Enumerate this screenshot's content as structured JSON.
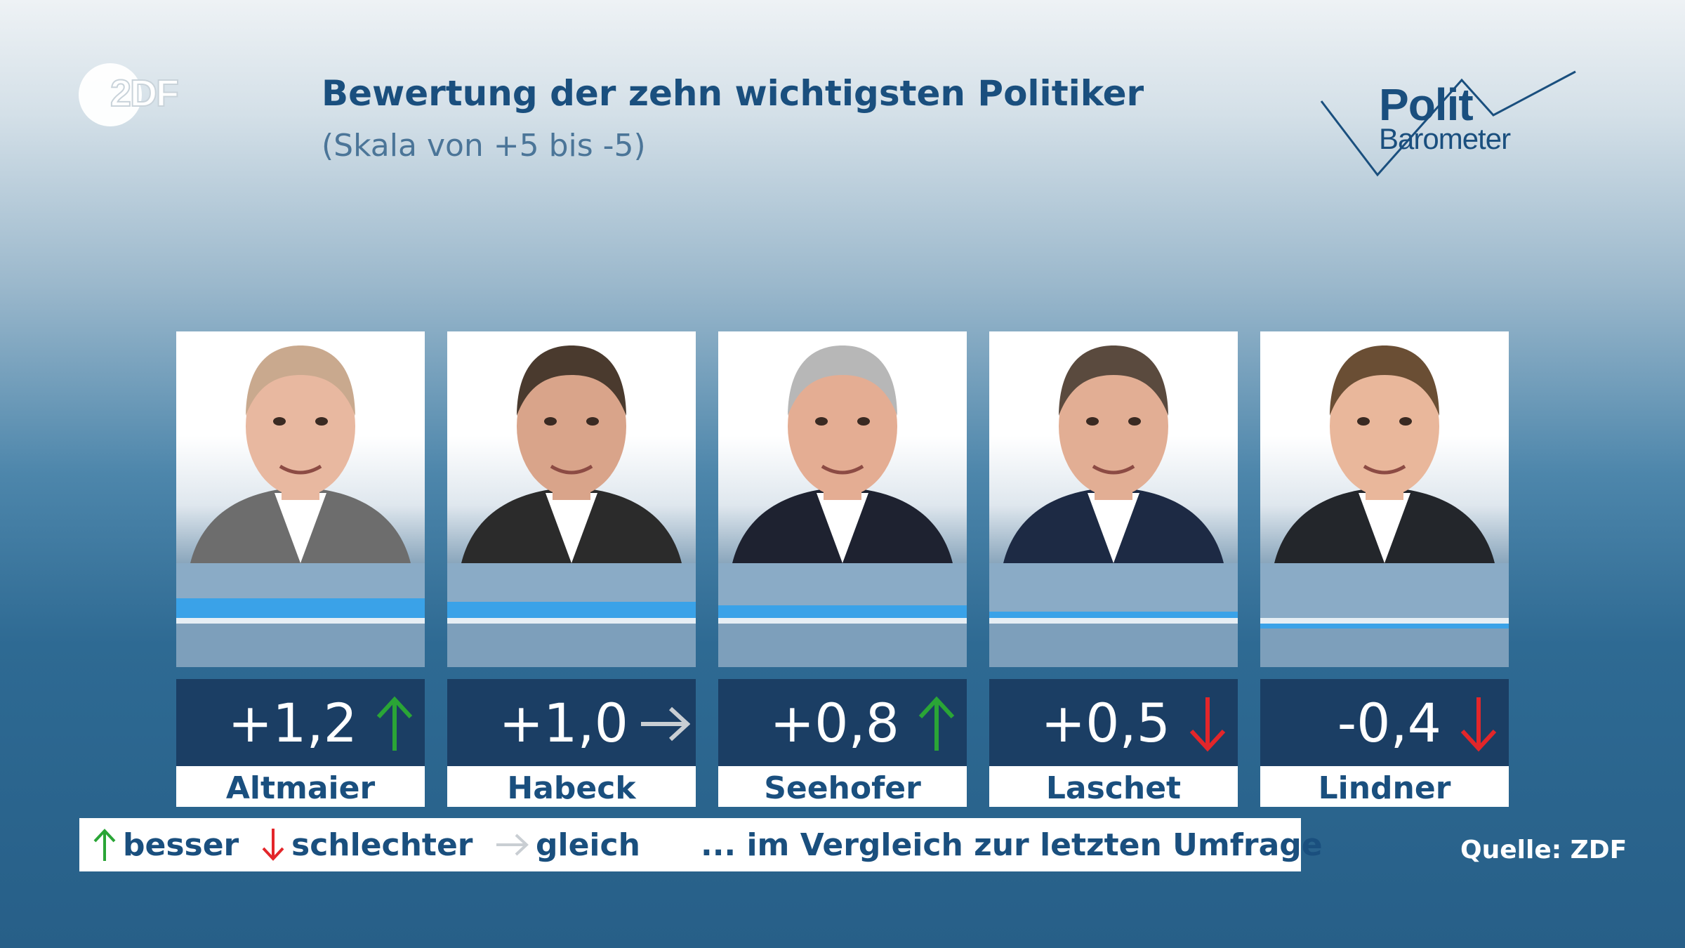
{
  "logo": {
    "zdf_text": "2DF"
  },
  "title": "Bewertung der zehn wichtigsten Politiker",
  "subtitle": "(Skala von +5 bis -5)",
  "politbarometer": {
    "line1": "Polit",
    "line2": "Barometer"
  },
  "colors": {
    "up": "#2aa536",
    "down": "#e3262a",
    "same": "#c9ced3",
    "bar": "#3aa2e8",
    "value_box": "#1b3e64",
    "text": "#1a4f7e"
  },
  "chart_data": {
    "type": "bar",
    "title": "Bewertung der zehn wichtigsten Politiker",
    "subtitle": "(Skala von +5 bis -5)",
    "ylim": [
      -5,
      5
    ],
    "categories": [
      "Altmaier",
      "Habeck",
      "Seehofer",
      "Laschet",
      "Lindner"
    ],
    "values": [
      1.2,
      1.0,
      0.8,
      0.5,
      -0.4
    ],
    "value_labels": [
      "+1,2",
      "+1,0",
      "+0,8",
      "+0,5",
      "-0,4"
    ],
    "trends": [
      "up",
      "same",
      "up",
      "down",
      "down"
    ]
  },
  "legend": {
    "better": "besser",
    "worse": "schlechter",
    "same": "gleich",
    "note": "... im Vergleich zur letzten Umfrage"
  },
  "source": "Quelle: ZDF"
}
